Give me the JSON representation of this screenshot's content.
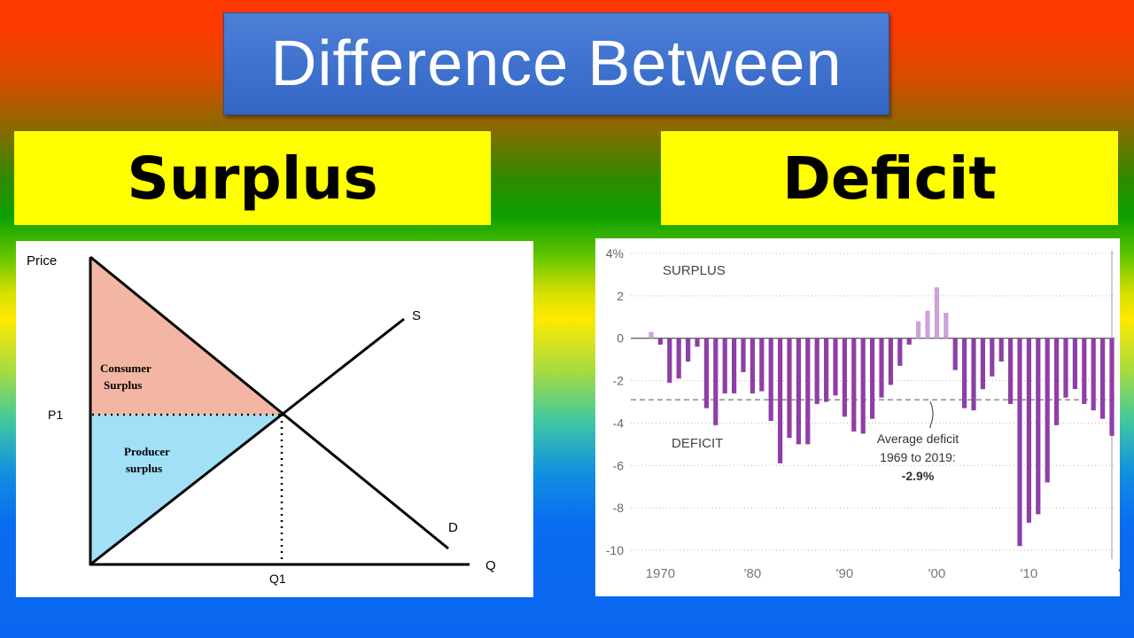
{
  "header": {
    "title": "Difference Between"
  },
  "labels": {
    "left": "Surplus",
    "right": "Deficit"
  },
  "surplus_diagram": {
    "y_axis_label": "Price",
    "x_axis_label": "Q",
    "supply_label": "S",
    "demand_label": "D",
    "price_label": "P1",
    "quantity_label": "Q1",
    "consumer_surplus_line1": "Consumer",
    "consumer_surplus_line2": "Surplus",
    "producer_surplus_line1": "Producer",
    "producer_surplus_line2": "surplus",
    "colors": {
      "consumer": "#f4b6a4",
      "producer": "#a2e0f7"
    }
  },
  "chart_data": {
    "type": "bar",
    "x": [
      1969,
      1970,
      1971,
      1972,
      1973,
      1974,
      1975,
      1976,
      1977,
      1978,
      1979,
      1980,
      1981,
      1982,
      1983,
      1984,
      1985,
      1986,
      1987,
      1988,
      1989,
      1990,
      1991,
      1992,
      1993,
      1994,
      1995,
      1996,
      1997,
      1998,
      1999,
      2000,
      2001,
      2002,
      2003,
      2004,
      2005,
      2006,
      2007,
      2008,
      2009,
      2010,
      2011,
      2012,
      2013,
      2014,
      2015,
      2016,
      2017,
      2018,
      2019
    ],
    "values": [
      0.3,
      -0.3,
      -2.1,
      -1.9,
      -1.1,
      -0.4,
      -3.3,
      -4.1,
      -2.6,
      -2.6,
      -1.6,
      -2.6,
      -2.5,
      -3.9,
      -5.9,
      -4.7,
      -5.0,
      -5.0,
      -3.1,
      -3.0,
      -2.7,
      -3.7,
      -4.4,
      -4.5,
      -3.8,
      -2.8,
      -2.2,
      -1.3,
      -0.3,
      0.8,
      1.3,
      2.4,
      1.2,
      -1.5,
      -3.3,
      -3.4,
      -2.4,
      -1.8,
      -1.1,
      -3.1,
      -9.8,
      -8.7,
      -8.3,
      -6.8,
      -4.1,
      -2.8,
      -2.4,
      -3.1,
      -3.4,
      -3.8,
      -4.6
    ],
    "yticks": [
      "4%",
      "2",
      "0",
      "-2",
      "-4",
      "-6",
      "-8",
      "-10"
    ],
    "xticks": [
      "1970",
      "'80",
      "'90",
      "'00",
      "'10",
      "'"
    ],
    "ylim": [
      -10,
      4
    ],
    "average": -2.9,
    "surplus_label": "SURPLUS",
    "deficit_label": "DEFICIT",
    "average_note": [
      "Average deficit",
      "1969 to 2019:",
      "-2.9%"
    ],
    "colors": {
      "deficit": "#8e3fa6",
      "surplus": "#cfa0dc",
      "average_line": "#777777"
    }
  }
}
